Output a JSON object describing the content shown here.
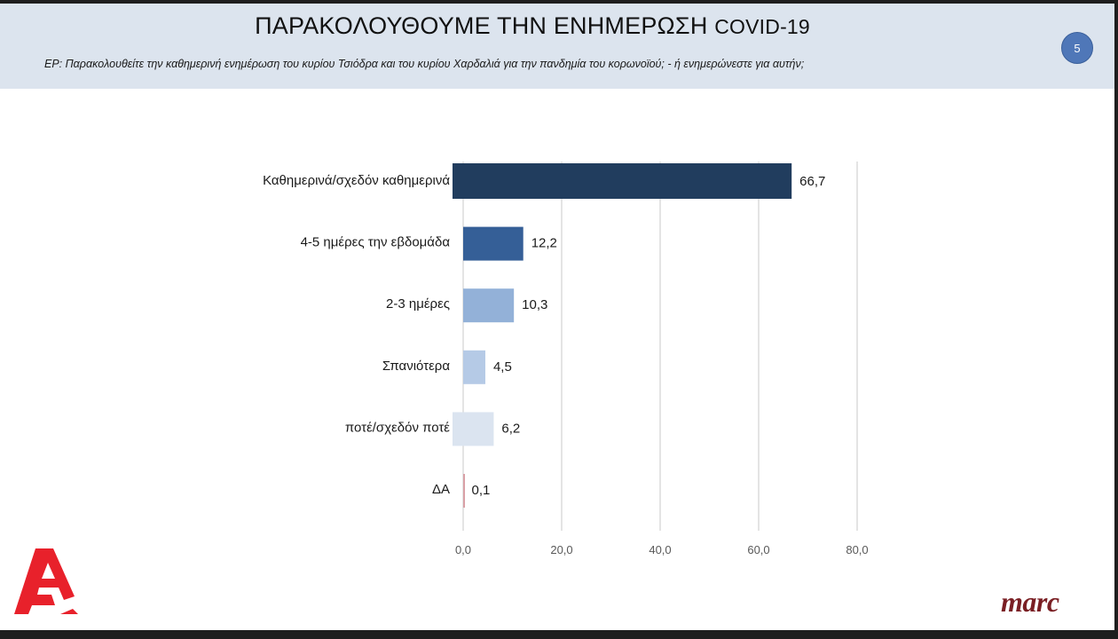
{
  "slide": {
    "title_main": "ΠΑΡΑΚΟΛΟΥΘΟΥΜΕ ΤΗΝ ΕΝΗΜΕΡΩΣΗ",
    "title_suffix": "COVID-19",
    "question": "ΕΡ: Παρακολουθείτε την καθημερινή ενημέρωση του κυρίου Τσιόδρα και του κυρίου Χαρδαλιά για την πανδημία του κορωνοϊού; - ή ενημερώνεστε για  αυτήν;",
    "page_number": "5"
  },
  "logos": {
    "left": "alpha-channel-logo",
    "right_text": "marc"
  },
  "chart_data": {
    "type": "bar",
    "orientation": "horizontal",
    "categories": [
      "Καθημερινά/σχεδόν καθημερινά",
      "4-5 ημέρες την εβδομάδα",
      "2-3 ημέρες",
      "Σπανιότερα",
      "ποτέ/σχεδόν ποτέ",
      "ΔΑ"
    ],
    "values": [
      66.7,
      12.2,
      10.3,
      4.5,
      6.2,
      0.1
    ],
    "value_labels": [
      "66,7",
      "12,2",
      "10,3",
      "4,5",
      "6,2",
      "0,1"
    ],
    "bar_colors": [
      "#213d5e",
      "#355f97",
      "#93b1d8",
      "#b5cae6",
      "#dbe4f0",
      "#d9a0a6"
    ],
    "xlim": [
      0,
      80
    ],
    "ticks": [
      0,
      20,
      40,
      60,
      80
    ],
    "tick_labels": [
      "0,0",
      "20,0",
      "40,0",
      "60,0",
      "80,0"
    ],
    "grid": true,
    "gridline_color": "#d9d9d9",
    "label_color": "#1a1a1a",
    "tick_color": "#595959"
  }
}
